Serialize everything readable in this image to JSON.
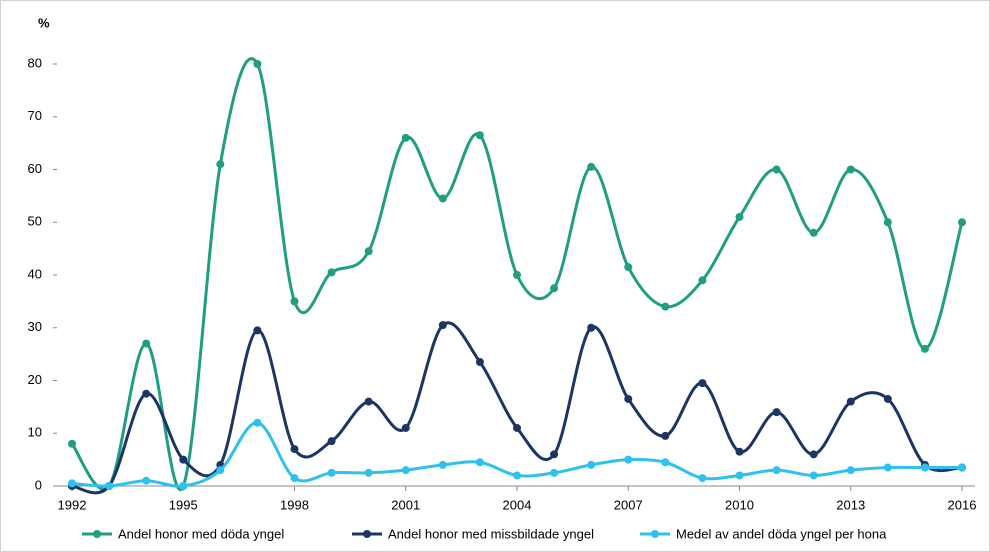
{
  "chart_data": {
    "type": "line",
    "y_label": "%",
    "x": [
      1992,
      1993,
      1994,
      1995,
      1996,
      1997,
      1998,
      1999,
      2000,
      2001,
      2002,
      2003,
      2004,
      2005,
      2006,
      2007,
      2008,
      2009,
      2010,
      2011,
      2012,
      2013,
      2014,
      2015,
      2016
    ],
    "series": [
      {
        "name": "Andel honor med döda yngel",
        "color": "#1f9e80",
        "values": [
          8,
          0,
          27,
          0,
          61,
          80,
          35,
          40.5,
          44.5,
          66,
          54.5,
          66.5,
          40,
          37.5,
          60.5,
          41.5,
          34,
          39,
          51,
          60,
          48,
          60,
          50,
          26,
          50
        ]
      },
      {
        "name": "Andel honor med missbildade yngel",
        "color": "#1b3564",
        "values": [
          0,
          0,
          17.5,
          5,
          4,
          29.5,
          7,
          8.5,
          16,
          11,
          30.5,
          23.5,
          11,
          6,
          30,
          16.5,
          9.5,
          19.5,
          6.5,
          14,
          6,
          16,
          16.5,
          4,
          3.5
        ]
      },
      {
        "name": "Medel av andel döda yngel per hona",
        "color": "#2ec0ef",
        "values": [
          0.5,
          0,
          1,
          0,
          3,
          12,
          1.5,
          2.5,
          2.5,
          3,
          4,
          4.5,
          2,
          2.5,
          4,
          5,
          4.5,
          1.5,
          2,
          3,
          2,
          3,
          3.5,
          3.5,
          3.5
        ]
      }
    ],
    "xlim": [
      1992,
      2016
    ],
    "xticks": [
      1992,
      1995,
      1998,
      2001,
      2004,
      2007,
      2010,
      2013,
      2016
    ],
    "ylim": [
      0,
      80
    ],
    "yticks": [
      0,
      10,
      20,
      30,
      40,
      50,
      60,
      70,
      80
    ],
    "smooth": true,
    "legend": "bottom"
  }
}
